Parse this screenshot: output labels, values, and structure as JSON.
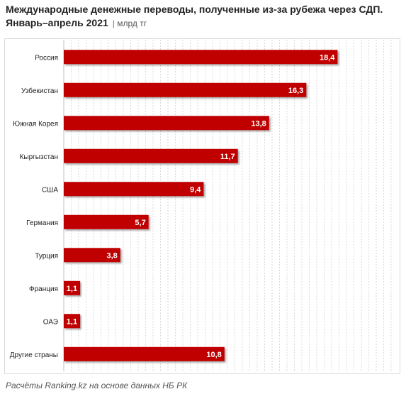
{
  "title": {
    "line1": "Международные денежные переводы, полученные из-за рубежа через СДП.",
    "line2": "Январь–апрель 2021",
    "unit": "млрд тг"
  },
  "source": "Расчёты Ranking.kz на основе данных НБ РК",
  "colors": {
    "bar": "#c00000",
    "grid": "#d0d0d0",
    "label": "#ffffff"
  },
  "chart_data": {
    "type": "bar",
    "orientation": "horizontal",
    "categories": [
      "Россия",
      "Узбекистан",
      "Южная Корея",
      "Кыргызстан",
      "США",
      "Германия",
      "Турция",
      "Франция",
      "ОАЭ",
      "Другие страны"
    ],
    "values": [
      18.4,
      16.3,
      13.8,
      11.7,
      9.4,
      5.7,
      3.8,
      1.1,
      1.1,
      10.8
    ],
    "value_labels": [
      "18,4",
      "16,3",
      "13,8",
      "11,7",
      "9,4",
      "5,7",
      "3,8",
      "1,1",
      "1,1",
      "10,8"
    ],
    "xlim": [
      0,
      22
    ],
    "grid": true
  }
}
